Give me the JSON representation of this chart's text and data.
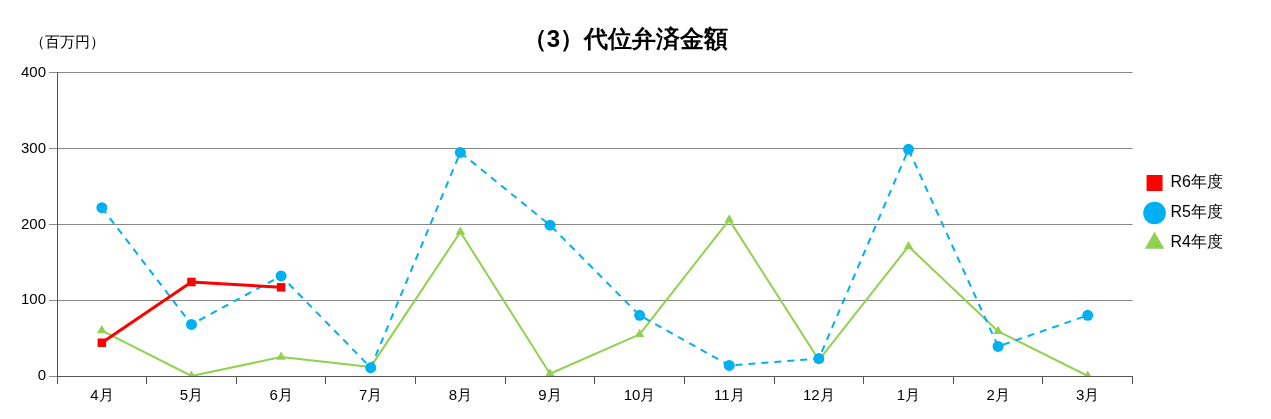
{
  "chart_data": {
    "type": "line",
    "title": "（3）代位弁済金額",
    "ylabel": "（百万円）",
    "categories": [
      "4月",
      "5月",
      "6月",
      "7月",
      "8月",
      "9月",
      "10月",
      "11月",
      "12月",
      "1月",
      "2月",
      "3月"
    ],
    "series": [
      {
        "name": "R4年度",
        "color": "#92d050",
        "marker": "triangle",
        "line_style": "solid",
        "values": [
          60,
          0,
          25,
          12,
          190,
          3,
          55,
          206,
          21,
          171,
          59,
          0
        ]
      },
      {
        "name": "R5年度",
        "color": "#00b0f0",
        "marker": "circle",
        "line_style": "dashed",
        "values": [
          222,
          68,
          132,
          11,
          295,
          199,
          80,
          14,
          23,
          299,
          39,
          80
        ]
      },
      {
        "name": "R6年度",
        "color": "#ff0000",
        "marker": "square",
        "line_style": "solid",
        "values": [
          44,
          124,
          117,
          null,
          null,
          null,
          null,
          null,
          null,
          null,
          null,
          null
        ]
      }
    ],
    "ylim": [
      0,
      400
    ],
    "yticks": [
      0,
      100,
      200,
      300,
      400
    ],
    "grid": "y",
    "legend": "right"
  }
}
